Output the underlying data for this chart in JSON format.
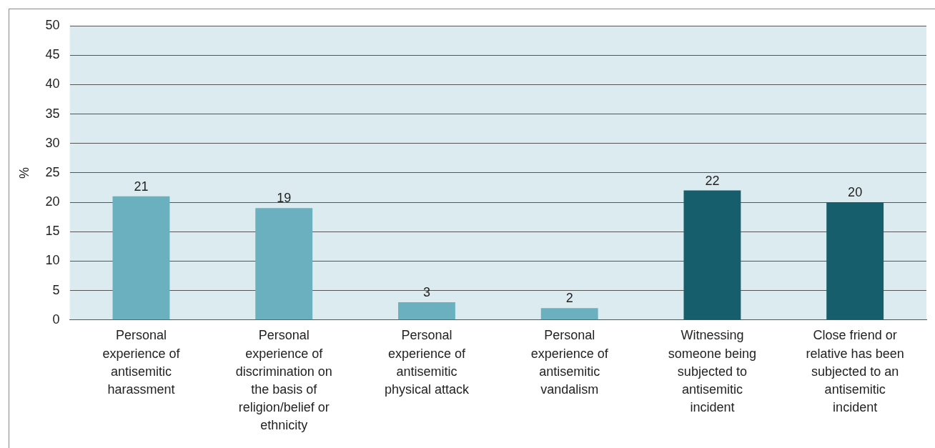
{
  "chart_data": {
    "type": "bar",
    "ylabel": "%",
    "categories": [
      "Personal experience of antisemitic harassment",
      "Personal experience of discrimination on the basis of religion/belief or ethnicity",
      "Personal experience of antisemitic physical attack",
      "Personal experience of antisemitic vandalism",
      "Witnessing someone being subjected to antisemitic incident",
      "Close friend or relative has been subjected to an antisemitic incident"
    ],
    "values": [
      21,
      19,
      3,
      2,
      22,
      20
    ],
    "colors": [
      "#6ab0bf",
      "#6ab0bf",
      "#6ab0bf",
      "#6ab0bf",
      "#165e6c",
      "#165e6c"
    ],
    "ylim": [
      0,
      50
    ],
    "yticks": [
      0,
      5,
      10,
      15,
      20,
      25,
      30,
      35,
      40,
      45,
      50
    ],
    "grid": "y",
    "legend": false,
    "data_labels": true
  }
}
